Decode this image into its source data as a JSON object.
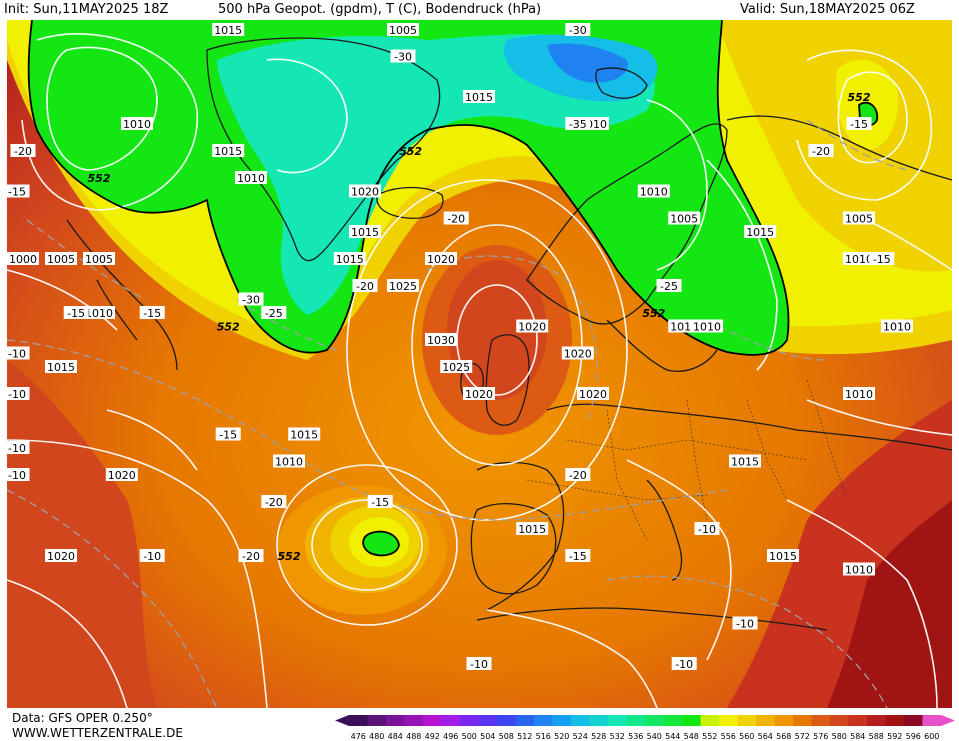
{
  "header": {
    "init": "Init: Sun,11MAY2025 18Z",
    "title": "500 hPa Geopot. (gpdm), T (C), Bodendruck (hPa)",
    "valid": "Valid: Sun,18MAY2025 06Z"
  },
  "footer": {
    "data_source": "Data: GFS OPER 0.250°",
    "website": "WWW.WETTERZENTRALE.DE"
  },
  "colorbar": {
    "values": [
      "476",
      "480",
      "484",
      "488",
      "492",
      "496",
      "500",
      "504",
      "508",
      "512",
      "516",
      "520",
      "524",
      "528",
      "532",
      "536",
      "540",
      "544",
      "548",
      "552",
      "556",
      "560",
      "564",
      "568",
      "572",
      "576",
      "580",
      "584",
      "588",
      "592",
      "596",
      "600"
    ],
    "colors": [
      "#3c0f5a",
      "#5a1478",
      "#7a1496",
      "#9614b4",
      "#b414d2",
      "#a01ee6",
      "#7a28f0",
      "#5a32f0",
      "#3c46f0",
      "#2864f0",
      "#1e82f0",
      "#14a0f0",
      "#14bee6",
      "#14d2d2",
      "#14e6b4",
      "#14e68c",
      "#14e664",
      "#14e63c",
      "#14e614",
      "#c8f000",
      "#f0f000",
      "#f0d200",
      "#f0b400",
      "#f09600",
      "#e67800",
      "#dc5a14",
      "#d2461e",
      "#c8321e",
      "#b41e1e",
      "#a01414",
      "#8c0a28",
      "#e650c8"
    ]
  },
  "map_labels": {
    "pressure": [
      {
        "text": "1010",
        "lon": -40,
        "lat": 70
      },
      {
        "text": "1005",
        "lon": -45,
        "lat": 60
      },
      {
        "text": "1015",
        "lon": -28,
        "lat": 77
      },
      {
        "text": "1005",
        "lon": -5,
        "lat": 80
      },
      {
        "text": "1015",
        "lon": 5,
        "lat": 72
      },
      {
        "text": "1010",
        "lon": 20,
        "lat": 70
      },
      {
        "text": "1015",
        "lon": -28,
        "lat": 68
      },
      {
        "text": "1010",
        "lon": -25,
        "lat": 66
      },
      {
        "text": "1020",
        "lon": -10,
        "lat": 65
      },
      {
        "text": "1015",
        "lon": -12,
        "lat": 60
      },
      {
        "text": "1015",
        "lon": -10,
        "lat": 62
      },
      {
        "text": "1020",
        "lon": 0,
        "lat": 60
      },
      {
        "text": "1025",
        "lon": -5,
        "lat": 58
      },
      {
        "text": "1030",
        "lon": 0,
        "lat": 54
      },
      {
        "text": "1025",
        "lon": 2,
        "lat": 52
      },
      {
        "text": "1020",
        "lon": 5,
        "lat": 50
      },
      {
        "text": "1020",
        "lon": 12,
        "lat": 55
      },
      {
        "text": "1020",
        "lon": 18,
        "lat": 53
      },
      {
        "text": "1020",
        "lon": 20,
        "lat": 50
      },
      {
        "text": "1015",
        "lon": 32,
        "lat": 55
      },
      {
        "text": "1010",
        "lon": 35,
        "lat": 55
      },
      {
        "text": "1005",
        "lon": 32,
        "lat": 63
      },
      {
        "text": "1010",
        "lon": 28,
        "lat": 65
      },
      {
        "text": "1015",
        "lon": 42,
        "lat": 62
      },
      {
        "text": "1005",
        "lon": 55,
        "lat": 63
      },
      {
        "text": "1010",
        "lon": 55,
        "lat": 60
      },
      {
        "text": "1010",
        "lon": 60,
        "lat": 55
      },
      {
        "text": "1010",
        "lon": 55,
        "lat": 50
      },
      {
        "text": "1015",
        "lon": 40,
        "lat": 45
      },
      {
        "text": "1015",
        "lon": 12,
        "lat": 40
      },
      {
        "text": "1015",
        "lon": 45,
        "lat": 38
      },
      {
        "text": "1010",
        "lon": 55,
        "lat": 37
      },
      {
        "text": "1015",
        "lon": -18,
        "lat": 47
      },
      {
        "text": "1010",
        "lon": -20,
        "lat": 45
      },
      {
        "text": "1020",
        "lon": -42,
        "lat": 44
      },
      {
        "text": "1020",
        "lon": -50,
        "lat": 38
      },
      {
        "text": "1015",
        "lon": -50,
        "lat": 52
      },
      {
        "text": "1010",
        "lon": -45,
        "lat": 56
      },
      {
        "text": "1000",
        "lon": -55,
        "lat": 60
      },
      {
        "text": "1005",
        "lon": -50,
        "lat": 60
      }
    ],
    "temperature": [
      {
        "text": "-30",
        "lon": 18,
        "lat": 78
      },
      {
        "text": "-30",
        "lon": -5,
        "lat": 75
      },
      {
        "text": "-35",
        "lon": 18,
        "lat": 70
      },
      {
        "text": "-20",
        "lon": 50,
        "lat": 68
      },
      {
        "text": "-15",
        "lon": 55,
        "lat": 70
      },
      {
        "text": "-15",
        "lon": 58,
        "lat": 60
      },
      {
        "text": "-20",
        "lon": 2,
        "lat": 63
      },
      {
        "text": "-20",
        "lon": -10,
        "lat": 58
      },
      {
        "text": "-25",
        "lon": 30,
        "lat": 58
      },
      {
        "text": "-30",
        "lon": -25,
        "lat": 57
      },
      {
        "text": "-25",
        "lon": -22,
        "lat": 56
      },
      {
        "text": "-20",
        "lon": -55,
        "lat": 68
      },
      {
        "text": "-15",
        "lon": -62,
        "lat": 65
      },
      {
        "text": "-15",
        "lon": -48,
        "lat": 56
      },
      {
        "text": "-15",
        "lon": -38,
        "lat": 56
      },
      {
        "text": "-10",
        "lon": -58,
        "lat": 53
      },
      {
        "text": "-10",
        "lon": -65,
        "lat": 50
      },
      {
        "text": "-10",
        "lon": -60,
        "lat": 46
      },
      {
        "text": "-10",
        "lon": -62,
        "lat": 44
      },
      {
        "text": "-15",
        "lon": -28,
        "lat": 47
      },
      {
        "text": "-20",
        "lon": -22,
        "lat": 42
      },
      {
        "text": "-20",
        "lon": -25,
        "lat": 38
      },
      {
        "text": "-15",
        "lon": -8,
        "lat": 42
      },
      {
        "text": "-20",
        "lon": 18,
        "lat": 44
      },
      {
        "text": "-15",
        "lon": 18,
        "lat": 38
      },
      {
        "text": "-10",
        "lon": 35,
        "lat": 40
      },
      {
        "text": "-10",
        "lon": -38,
        "lat": 38
      },
      {
        "text": "-10",
        "lon": 40,
        "lat": 33
      },
      {
        "text": "-10",
        "lon": 5,
        "lat": 30
      },
      {
        "text": "-10",
        "lon": 32,
        "lat": 30
      }
    ],
    "geopotential": [
      {
        "text": "552",
        "lon": -45,
        "lat": 66
      },
      {
        "text": "552",
        "lon": -4,
        "lat": 68
      },
      {
        "text": "552",
        "lon": -28,
        "lat": 55
      },
      {
        "text": "552",
        "lon": 28,
        "lat": 56
      },
      {
        "text": "552",
        "lon": 55,
        "lat": 72
      },
      {
        "text": "552",
        "lon": -20,
        "lat": 38
      }
    ]
  }
}
